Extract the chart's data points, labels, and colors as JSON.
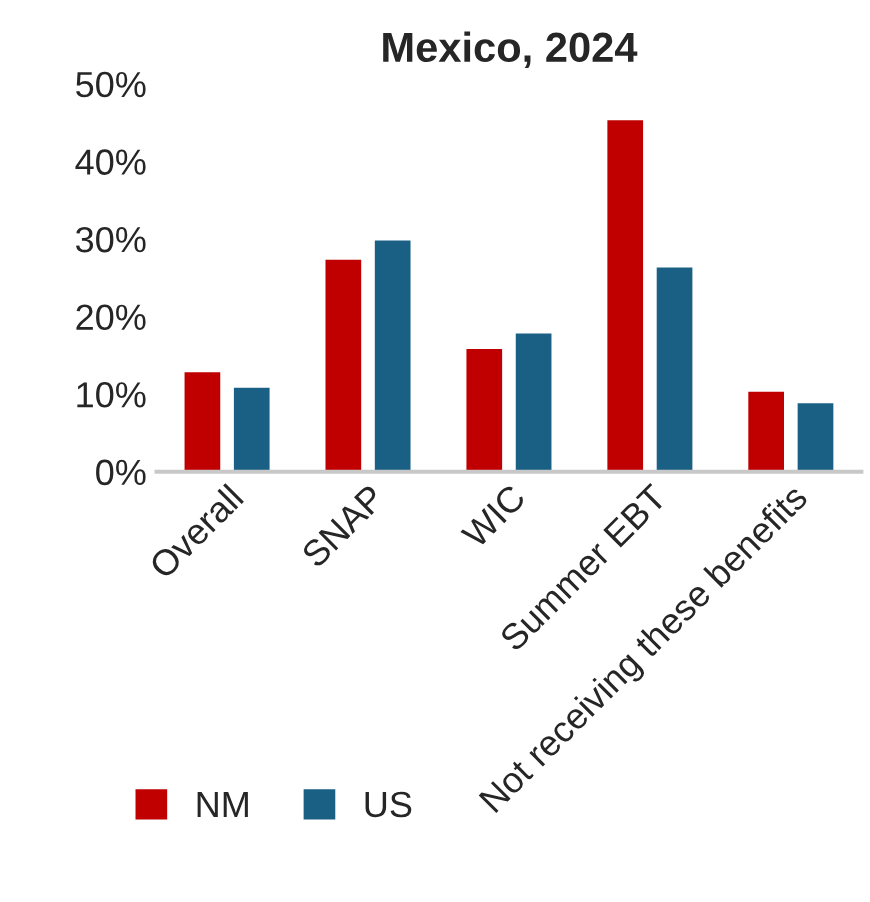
{
  "chart_data": {
    "type": "bar",
    "title": "Mexico, 2024",
    "categories": [
      "Overall",
      "SNAP",
      "WIC",
      "Summer EBT",
      "Not receiving these benefits"
    ],
    "series": [
      {
        "name": "NM",
        "color": "#c00000",
        "values": [
          13,
          27.5,
          16,
          45.5,
          10.5
        ]
      },
      {
        "name": "US",
        "color": "#1a6085",
        "values": [
          11,
          30,
          18,
          26.5,
          9
        ]
      }
    ],
    "ylim": [
      0,
      50
    ],
    "yticks": [
      {
        "value": 0,
        "label": "0%"
      },
      {
        "value": 10,
        "label": "10%"
      },
      {
        "value": 20,
        "label": "20%"
      },
      {
        "value": 30,
        "label": "30%"
      },
      {
        "value": 40,
        "label": "40%"
      },
      {
        "value": 50,
        "label": "50%"
      }
    ],
    "grid": false,
    "legend": "bottom left"
  }
}
